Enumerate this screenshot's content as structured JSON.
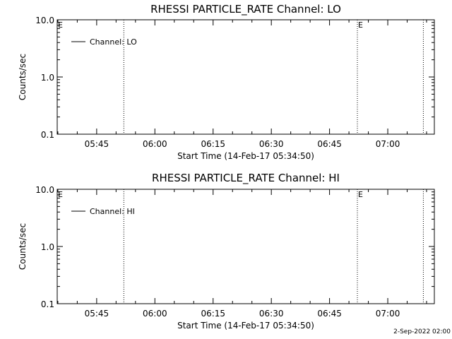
{
  "footer": {
    "timestamp": "2-Sep-2022 02:00"
  },
  "chart_data": [
    {
      "type": "line",
      "title": "RHESSI PARTICLE_RATE Channel: LO",
      "xlabel": "Start Time (14-Feb-17 05:34:50)",
      "ylabel": "Counts/sec",
      "yscale": "log",
      "ylim": [
        0.1,
        10.0
      ],
      "yticks": [
        0.1,
        1.0,
        10.0
      ],
      "ytick_labels": [
        "0.1",
        "1.0",
        "10.0"
      ],
      "xlim": [
        "05:34:50",
        "07:12:00"
      ],
      "xticks": [
        "05:45",
        "06:00",
        "06:15",
        "06:30",
        "06:45",
        "07:00"
      ],
      "vlines": [
        "05:52:00",
        "06:52:10",
        "07:09:10"
      ],
      "markers": [
        {
          "time": "05:34:50",
          "label": "E"
        },
        {
          "time": "06:52:10",
          "label": "E"
        }
      ],
      "legend": {
        "entries": [
          "Channel: LO"
        ],
        "position": "top-left"
      },
      "series": []
    },
    {
      "type": "line",
      "title": "RHESSI PARTICLE_RATE Channel: HI",
      "xlabel": "Start Time (14-Feb-17 05:34:50)",
      "ylabel": "Counts/sec",
      "yscale": "log",
      "ylim": [
        0.1,
        10.0
      ],
      "yticks": [
        0.1,
        1.0,
        10.0
      ],
      "ytick_labels": [
        "0.1",
        "1.0",
        "10.0"
      ],
      "xlim": [
        "05:34:50",
        "07:12:00"
      ],
      "xticks": [
        "05:45",
        "06:00",
        "06:15",
        "06:30",
        "06:45",
        "07:00"
      ],
      "vlines": [
        "05:52:00",
        "06:52:10",
        "07:09:10"
      ],
      "markers": [
        {
          "time": "05:34:50",
          "label": "E"
        },
        {
          "time": "06:52:10",
          "label": "E"
        }
      ],
      "legend": {
        "entries": [
          "Channel: HI"
        ],
        "position": "top-left"
      },
      "series": []
    }
  ]
}
